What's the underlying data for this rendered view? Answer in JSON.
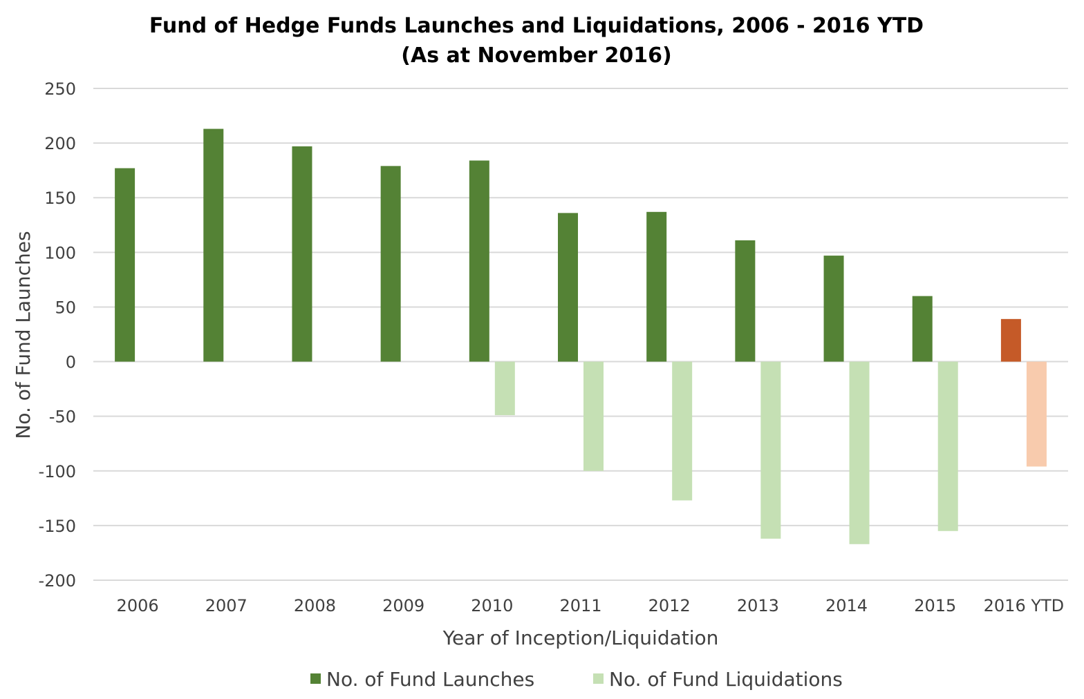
{
  "chart_data": {
    "type": "bar",
    "title": "Fund of Hedge Funds Launches and Liquidations, 2006 - 2016 YTD",
    "subtitle": "(As at November 2016)",
    "xlabel": "Year of Inception/Liquidation",
    "ylabel": "No. of Fund Launches",
    "ylim": [
      -200,
      250
    ],
    "yticks": [
      250,
      200,
      150,
      100,
      50,
      0,
      -50,
      -100,
      -150,
      -200
    ],
    "grid": true,
    "legend_position": "bottom",
    "categories": [
      "2006",
      "2007",
      "2008",
      "2009",
      "2010",
      "2011",
      "2012",
      "2013",
      "2014",
      "2015",
      "2016 YTD"
    ],
    "series": [
      {
        "name": "No. of Fund Launches",
        "color": "#548235",
        "highlight_color": "#c55a28",
        "values": [
          177,
          213,
          197,
          179,
          184,
          136,
          137,
          111,
          97,
          60,
          39
        ]
      },
      {
        "name": "No. of Fund Liquidations",
        "color": "#c5e0b4",
        "highlight_color": "#f8cbad",
        "values": [
          null,
          null,
          null,
          null,
          -49,
          -100,
          -127,
          -162,
          -167,
          -155,
          -96
        ]
      }
    ],
    "highlighted_category": "2016 YTD"
  }
}
